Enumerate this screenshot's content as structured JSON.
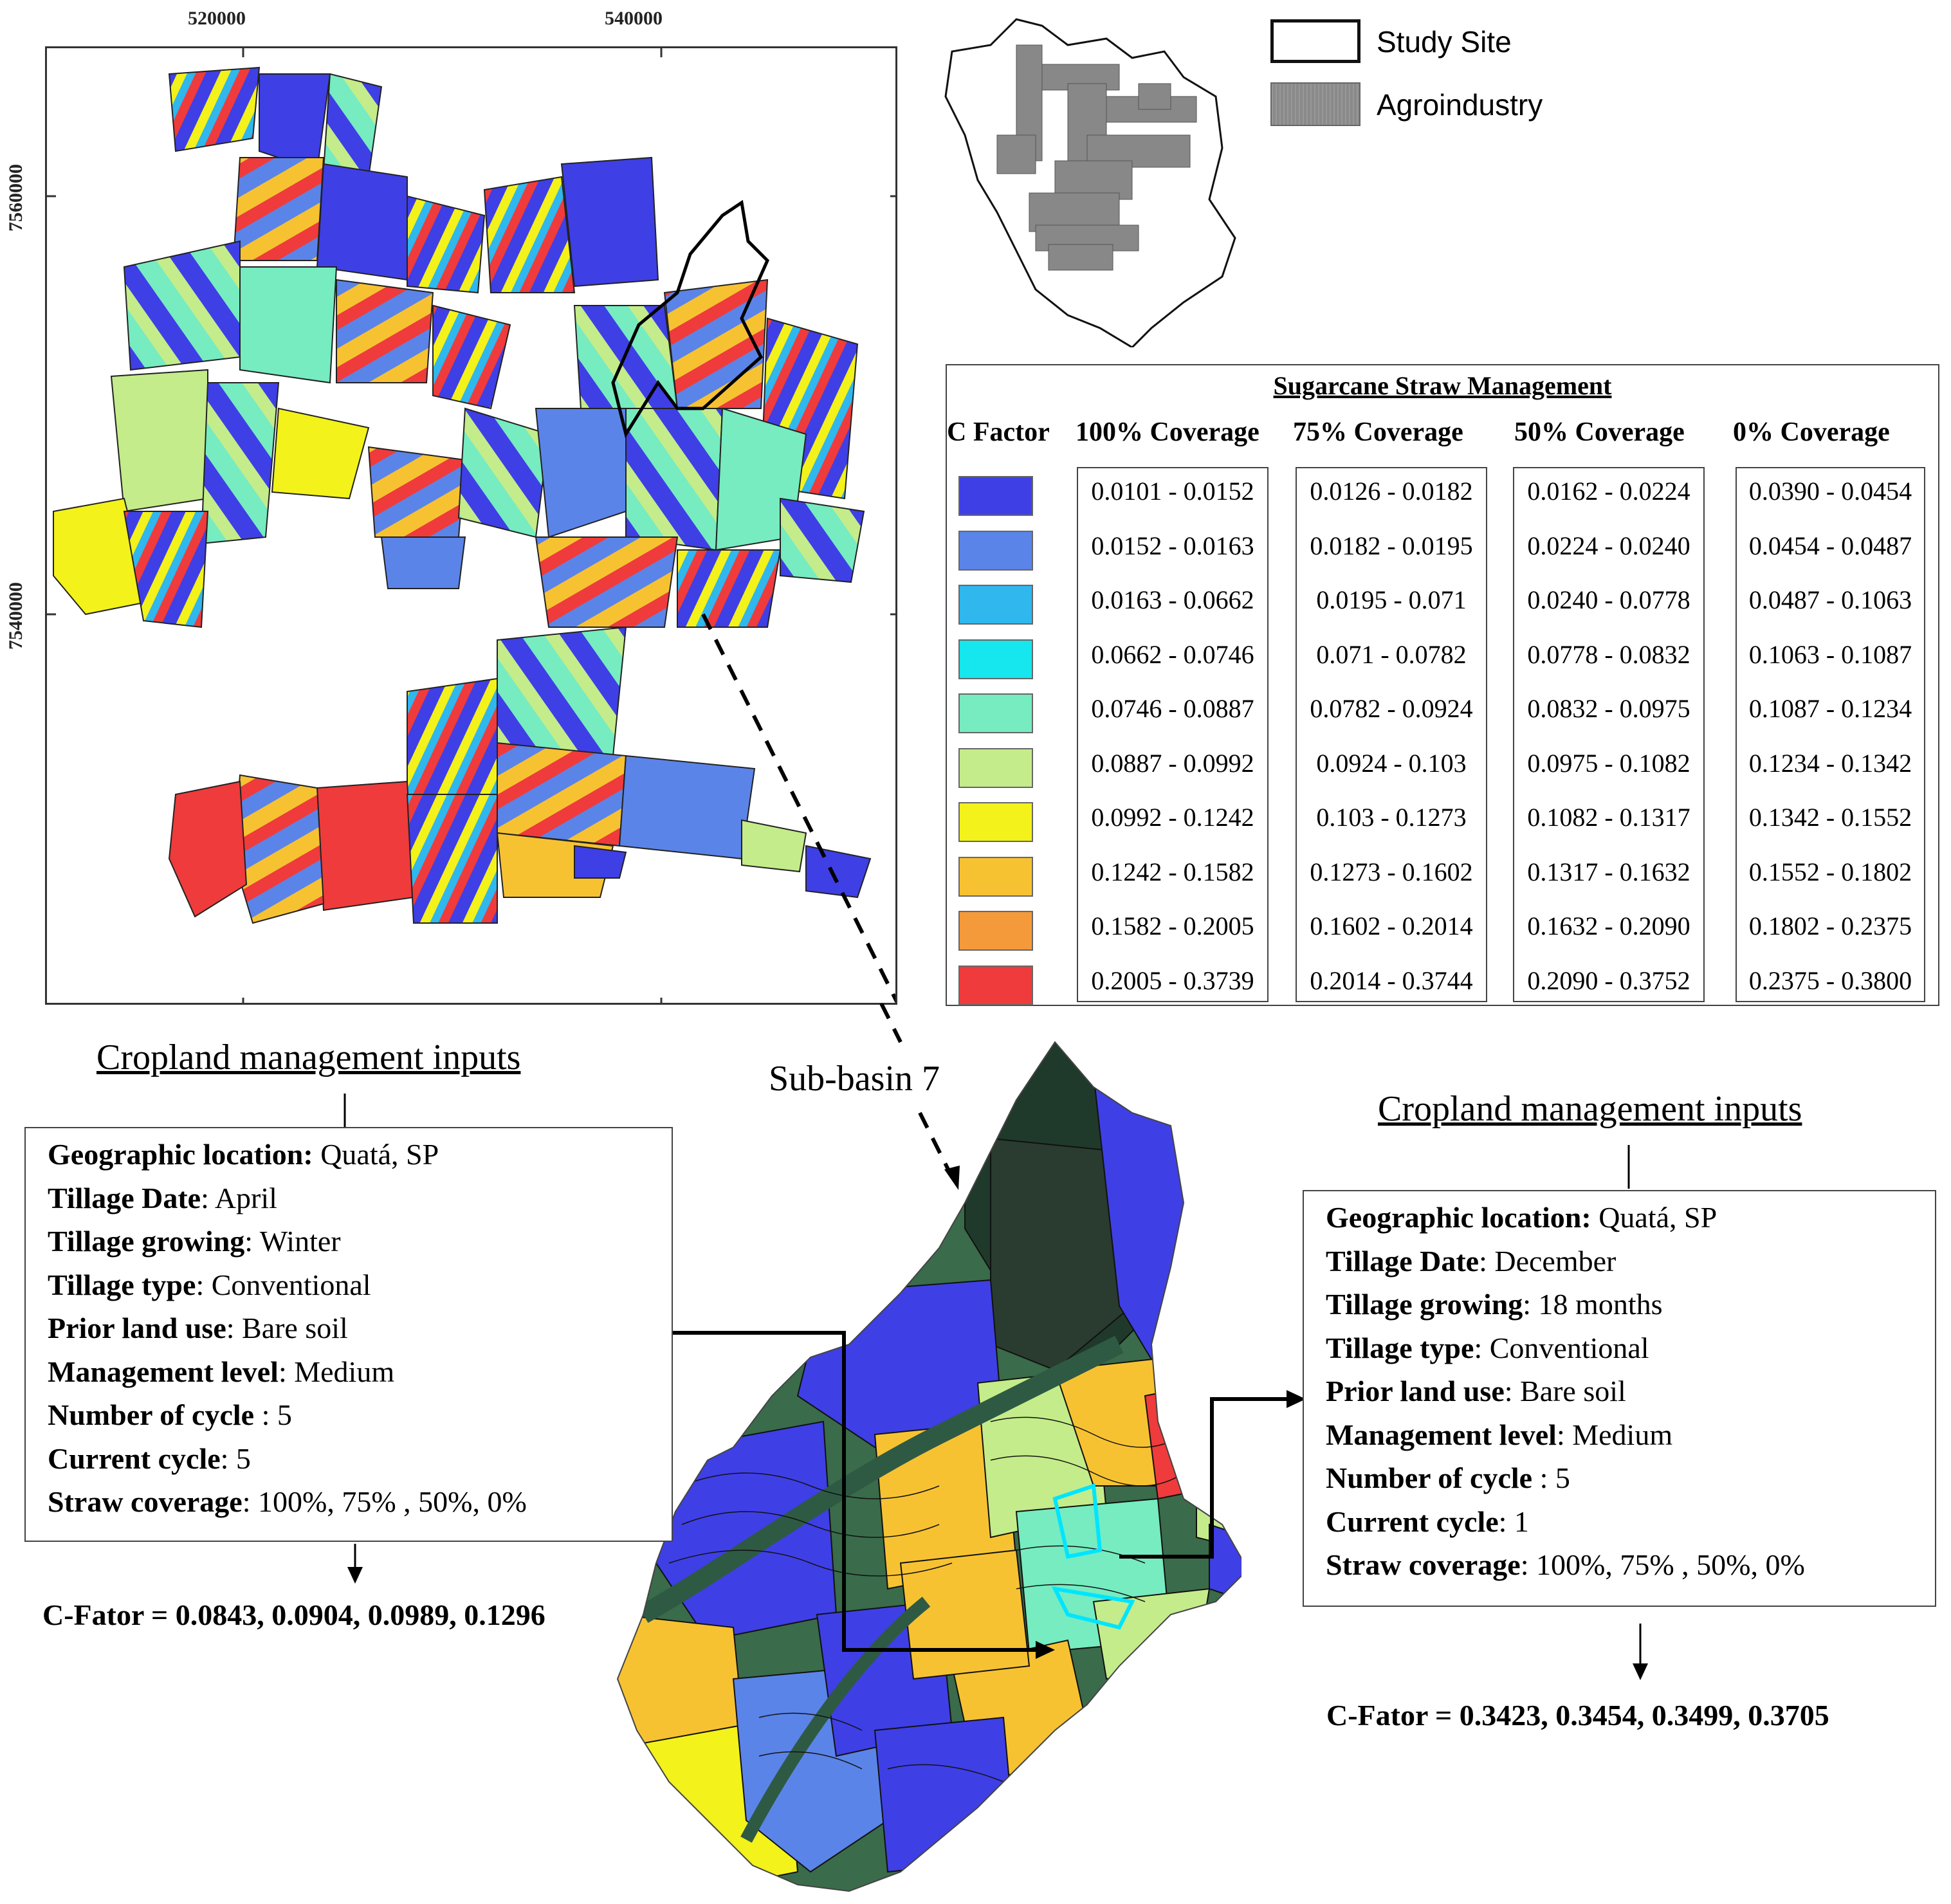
{
  "map": {
    "x_ticks": [
      "520000",
      "540000"
    ],
    "y_ticks": [
      "7560000",
      "7540000"
    ]
  },
  "legend": {
    "study_site": "Study Site",
    "agroindustry": "Agroindustry"
  },
  "table": {
    "title": "Sugarcane Straw Management",
    "headers": [
      "C Factor",
      "100%  Coverage",
      "75% Coverage",
      "50% Coverage",
      "0% Coverage"
    ],
    "colors": [
      "#3f3fe6",
      "#5b84e8",
      "#2fb7ee",
      "#16e6ee",
      "#76ecc0",
      "#c4ec8a",
      "#f3f21a",
      "#f7c232",
      "#f59a3a",
      "#ef3b3b"
    ],
    "cov100": [
      "0.0101 - 0.0152",
      "0.0152 - 0.0163",
      "0.0163 - 0.0662",
      "0.0662 - 0.0746",
      "0.0746 - 0.0887",
      "0.0887 - 0.0992",
      "0.0992 - 0.1242",
      "0.1242 - 0.1582",
      "0.1582 - 0.2005",
      "0.2005 - 0.3739"
    ],
    "cov75": [
      "0.0126 - 0.0182",
      "0.0182 - 0.0195",
      "0.0195 - 0.071",
      "0.071 - 0.0782",
      "0.0782 - 0.0924",
      "0.0924 - 0.103",
      "0.103 - 0.1273",
      "0.1273 - 0.1602",
      "0.1602 - 0.2014",
      "0.2014 - 0.3744"
    ],
    "cov50": [
      "0.0162 - 0.0224",
      "0.0224 - 0.0240",
      "0.0240 - 0.0778",
      "0.0778 - 0.0832",
      "0.0832 - 0.0975",
      "0.0975 - 0.1082",
      "0.1082 - 0.1317",
      "0.1317 - 0.1632",
      "0.1632 - 0.2090",
      "0.2090 - 0.3752"
    ],
    "cov0": [
      "0.0390 - 0.0454",
      "0.0454 - 0.0487",
      "0.0487 - 0.1063",
      "0.1063 - 0.1087",
      "0.1087 - 0.1234",
      "0.1234 - 0.1342",
      "0.1342 - 0.1552",
      "0.1552 - 0.1802",
      "0.1802 - 0.2375",
      "0.2375 - 0.3800"
    ]
  },
  "sub_basin_label": "Sub-basin 7",
  "left_inputs": {
    "title": "Cropland management inputs",
    "rows": [
      {
        "k": "Geographic location:",
        "v": " Quatá, SP"
      },
      {
        "k": "Tillage Date",
        "v": ": April"
      },
      {
        "k": "Tillage growing",
        "v": ": Winter"
      },
      {
        "k": "Tillage type",
        "v": ": Conventional"
      },
      {
        "k": "Prior land use",
        "v": ": Bare soil"
      },
      {
        "k": "Management level",
        "v": ": Medium"
      },
      {
        "k": "Number of cycle",
        "v": " : 5"
      },
      {
        "k": "Current cycle",
        "v": ": 5"
      },
      {
        "k": "Straw coverage",
        "v": ": 100%, 75% , 50%, 0%"
      }
    ],
    "cfator": "C-Fator = 0.0843, 0.0904, 0.0989, 0.1296"
  },
  "right_inputs": {
    "title": "Cropland management inputs",
    "rows": [
      {
        "k": "Geographic location:",
        "v": " Quatá, SP"
      },
      {
        "k": "Tillage Date",
        "v": ": December"
      },
      {
        "k": "Tillage growing",
        "v": ": 18 months"
      },
      {
        "k": "Tillage type",
        "v": ": Conventional"
      },
      {
        "k": "Prior land use",
        "v": ": Bare soil"
      },
      {
        "k": "Management level",
        "v": ": Medium"
      },
      {
        "k": "Number of cycle",
        "v": " : 5"
      },
      {
        "k": "Current cycle",
        "v": ": 1"
      },
      {
        "k": "Straw coverage",
        "v": ": 100%, 75% , 50%, 0%"
      }
    ],
    "cfator": "C-Fator =  0.3423, 0.3454, 0.3499, 0.3705"
  }
}
